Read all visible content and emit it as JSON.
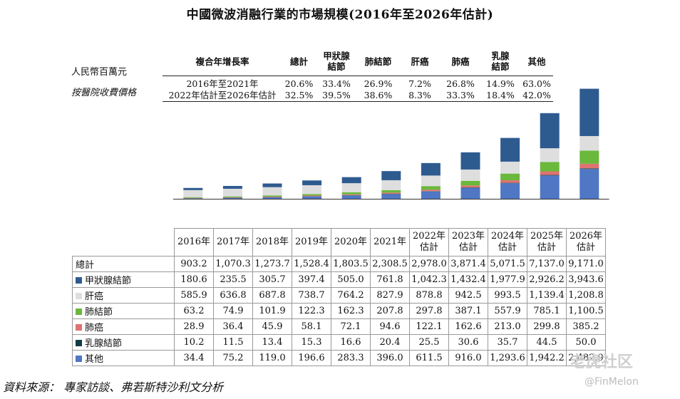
{
  "title": "中國微波消融行業的市場規模(2016年至2026年估計)",
  "unit_labels": [
    "人民幣百萬元",
    "按醫院收費價格"
  ],
  "cagr_table": {
    "header": [
      "複合年增長率",
      "總計",
      "甲狀腺\n結節",
      "肺結節",
      "肝癌",
      "肺癌",
      "乳腺\n結節",
      "其他"
    ],
    "rows": [
      {
        "label": "2016年至2021年",
        "values": [
          "20.6%",
          "33.4%",
          "26.9%",
          "7.2%",
          "26.8%",
          "14.9%",
          "63.0%"
        ]
      },
      {
        "label": "2022年估計至2026年估計",
        "values": [
          "32.5%",
          "39.5%",
          "38.6%",
          "8.3%",
          "33.3%",
          "18.4%",
          "42.0%"
        ]
      }
    ]
  },
  "chart_data": {
    "type": "bar",
    "stacked": true,
    "title": "中國微波消融行業的市場規模(2016年至2026年估計)",
    "ylabel": "人民幣百萬元",
    "categories": [
      "2016年",
      "2017年",
      "2018年",
      "2019年",
      "2020年",
      "2021年",
      "2022年\n估計",
      "2023年\n估計",
      "2024年\n估計",
      "2025年\n估計",
      "2026年\n估計"
    ],
    "ylim": [
      0,
      9500
    ],
    "totals": [
      903.2,
      1070.3,
      1273.7,
      1528.4,
      1803.5,
      2308.5,
      2978.0,
      3871.4,
      5071.5,
      7137.0,
      9171.0
    ],
    "totals_text": [
      "903.2",
      "1,070.3",
      "1,273.7",
      "1,528.4",
      "1,803.5",
      "2,308.5",
      "2,978.0",
      "3,871.4",
      "5,071.5",
      "7,137.0",
      "9,171.0"
    ],
    "total_label": "總計",
    "series": [
      {
        "name": "甲狀腺結節",
        "color": "#2e5b8f",
        "values": [
          180.6,
          235.5,
          305.7,
          397.4,
          505.0,
          761.8,
          1042.3,
          1432.4,
          1977.9,
          2926.2,
          3943.6
        ],
        "text": [
          "180.6",
          "235.5",
          "305.7",
          "397.4",
          "505.0",
          "761.8",
          "1,042.3",
          "1,432.4",
          "1,977.9",
          "2,926.2",
          "3,943.6"
        ]
      },
      {
        "name": "肝癌",
        "color": "#dedede",
        "values": [
          585.9,
          636.8,
          687.8,
          738.7,
          764.2,
          827.9,
          878.8,
          942.5,
          993.5,
          1139.4,
          1208.8
        ],
        "text": [
          "585.9",
          "636.8",
          "687.8",
          "738.7",
          "764.2",
          "827.9",
          "878.8",
          "942.5",
          "993.5",
          "1,139.4",
          "1,208.8"
        ]
      },
      {
        "name": "肺結節",
        "color": "#6ab83c",
        "values": [
          63.2,
          74.9,
          101.9,
          122.3,
          162.3,
          207.8,
          297.8,
          387.1,
          557.9,
          785.1,
          1100.5
        ],
        "text": [
          "63.2",
          "74.9",
          "101.9",
          "122.3",
          "162.3",
          "207.8",
          "297.8",
          "387.1",
          "557.9",
          "785.1",
          "1,100.5"
        ]
      },
      {
        "name": "肺癌",
        "color": "#e07272",
        "values": [
          28.9,
          36.4,
          45.9,
          58.1,
          72.1,
          94.6,
          122.1,
          162.6,
          213.0,
          299.8,
          385.2
        ],
        "text": [
          "28.9",
          "36.4",
          "45.9",
          "58.1",
          "72.1",
          "94.6",
          "122.1",
          "162.6",
          "213.0",
          "299.8",
          "385.2"
        ]
      },
      {
        "name": "乳腺結節",
        "color": "#0f3d45",
        "values": [
          10.2,
          11.5,
          13.4,
          15.3,
          16.6,
          20.4,
          25.5,
          30.6,
          35.7,
          44.5,
          50.0
        ],
        "text": [
          "10.2",
          "11.5",
          "13.4",
          "15.3",
          "16.6",
          "20.4",
          "25.5",
          "30.6",
          "35.7",
          "44.5",
          "50.0"
        ]
      },
      {
        "name": "其他",
        "color": "#4f77c4",
        "values": [
          34.4,
          75.2,
          119.0,
          196.6,
          283.3,
          396.0,
          611.5,
          916.0,
          1293.6,
          1942.2,
          2482.9
        ],
        "text": [
          "34.4",
          "75.2",
          "119.0",
          "196.6",
          "283.3",
          "396.0",
          "611.5",
          "916.0",
          "1,293.6",
          "1,942.2",
          "2,482.9"
        ]
      }
    ]
  },
  "source": "資料來源：  專家訪談、弗若斯特沙利文分析",
  "watermarks": [
    "老虎社区",
    "@FinMelon"
  ]
}
